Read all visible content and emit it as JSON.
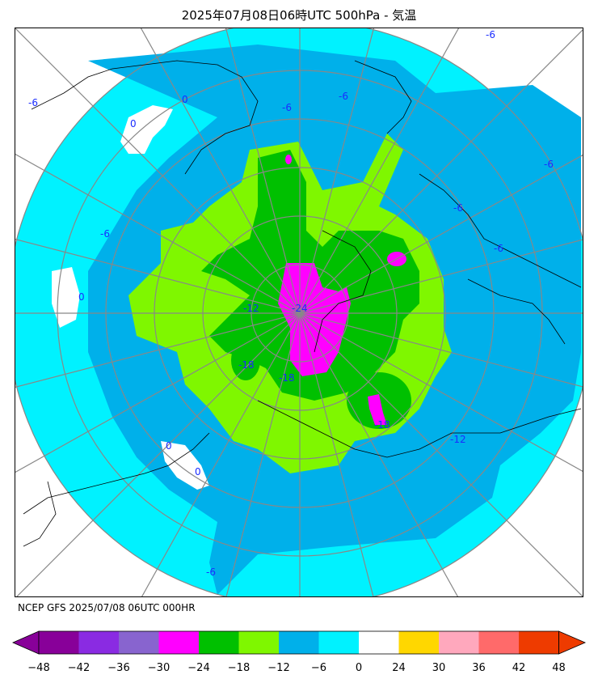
{
  "header": {
    "title": "2025年07月08日06時UTC 500hPa - 気温"
  },
  "footer": {
    "credit": "NCEP GFS 2025/07/08 06UTC 000HR"
  },
  "map": {
    "projection": "north-polar-stereographic",
    "field": "500hPa temperature",
    "units": "°C",
    "contour_labels": [
      "-6",
      "-6",
      "-6",
      "-6",
      "-6",
      "-6",
      "-6",
      "-6",
      "-6",
      "0",
      "0",
      "0",
      "0",
      "0",
      "-12",
      "-12",
      "-18",
      "-18",
      "-18",
      "-24"
    ],
    "colors": {
      "ocean_or_land_background": "#00f2ff",
      "band_-12_-6": "#00b0ea",
      "band_-18_-12": "#7ff700",
      "band_-24_-18": "#00c000",
      "band_-30_-24": "#ff00ff",
      "band_0_24": "#ffffff",
      "grid": "#888888",
      "coastline": "#000000",
      "contour_line": "#1a2cff"
    }
  },
  "colorbar": {
    "ticks": [
      "−48",
      "−42",
      "−36",
      "−30",
      "−24",
      "−18",
      "−12",
      "−6",
      "0",
      "24",
      "30",
      "36",
      "42",
      "48"
    ],
    "colors": [
      "#880099",
      "#8a2be2",
      "#8864cf",
      "#ff00ff",
      "#00c000",
      "#7ff700",
      "#00b0ea",
      "#00f2ff",
      "#ffffff",
      "#ffd700",
      "#ffa8bd",
      "#ff6a6a",
      "#ee3b00"
    ],
    "extend_low_color": "#880099",
    "extend_high_color": "#ee3b00"
  }
}
